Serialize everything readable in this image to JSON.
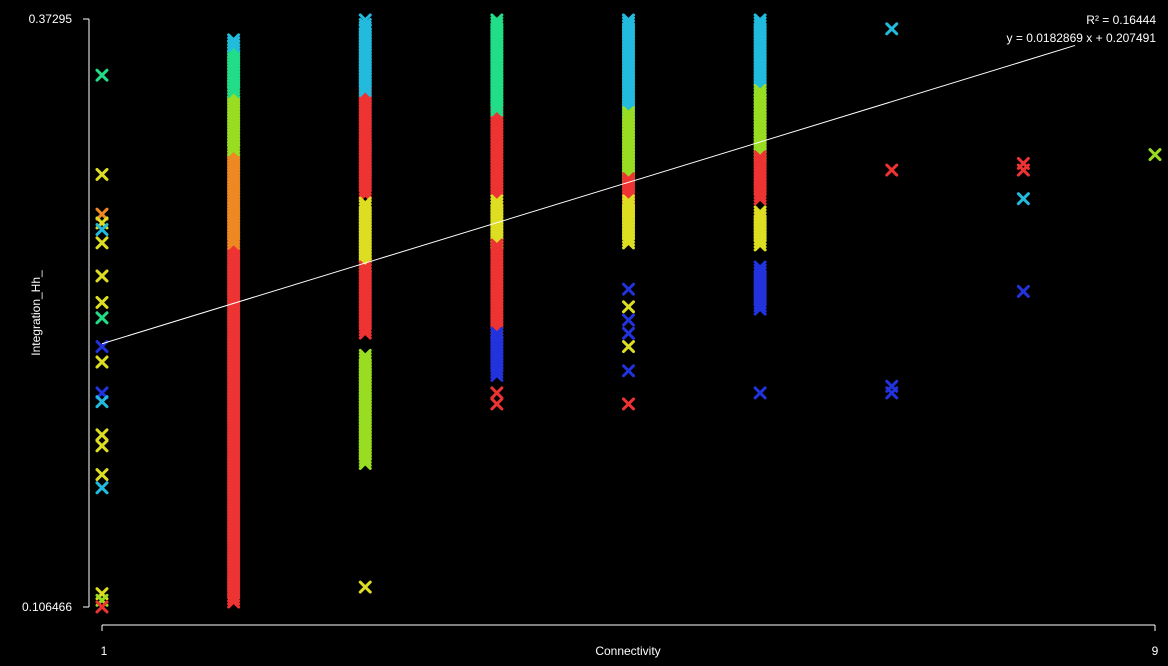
{
  "chart_data": {
    "type": "scatter",
    "xlabel": "Connectivity",
    "ylabel": "Integration_Hh_",
    "xlim": [
      1,
      9
    ],
    "ylim": [
      0.106466,
      0.37295
    ],
    "x_tick_labels": [
      "1",
      "9"
    ],
    "y_tick_labels": [
      "0.106466",
      "0.37295"
    ],
    "marker": "x",
    "background": "#000000",
    "grid": false,
    "legend": "none",
    "color_scale": [
      "#2233dd",
      "#22bbdd",
      "#22dd88",
      "#99dd22",
      "#dddd22",
      "#ee8822",
      "#ee3333"
    ],
    "regression": {
      "r2_label": "R² = 0.16444",
      "equation_label": "y = 0.0182869 x + 0.207491",
      "slope": 0.0182869,
      "intercept": 0.207491,
      "color": "#ffffff"
    },
    "bands": [
      {
        "x": 2,
        "from": 0.1075,
        "to": 0.2705,
        "color": "#ee3333"
      },
      {
        "x": 2,
        "from": 0.2705,
        "to": 0.3135,
        "color": "#ee8822"
      },
      {
        "x": 2,
        "from": 0.3135,
        "to": 0.3395,
        "color": "#99dd22"
      },
      {
        "x": 2,
        "from": 0.3395,
        "to": 0.3605,
        "color": "#22dd88"
      },
      {
        "x": 2,
        "from": 0.3605,
        "to": 0.3635,
        "color": "#22bbdd"
      },
      {
        "x": 3,
        "from": 0.2925,
        "to": 0.3395,
        "color": "#ee3333"
      },
      {
        "x": 3,
        "from": 0.2605,
        "to": 0.2895,
        "color": "#dddd22"
      },
      {
        "x": 3,
        "from": 0.2305,
        "to": 0.2605,
        "color": "#ee3333"
      },
      {
        "x": 3,
        "from": 0.3395,
        "to": 0.3705,
        "color": "#22bbdd"
      },
      {
        "x": 3,
        "from": 0.1705,
        "to": 0.2205,
        "color": "#99dd22"
      },
      {
        "x": 4,
        "from": 0.2905,
        "to": 0.3305,
        "color": "#ee3333"
      },
      {
        "x": 4,
        "from": 0.3305,
        "to": 0.3725,
        "color": "#22dd88"
      },
      {
        "x": 4,
        "from": 0.2705,
        "to": 0.2905,
        "color": "#dddd22"
      },
      {
        "x": 4,
        "from": 0.2305,
        "to": 0.2705,
        "color": "#ee3333"
      },
      {
        "x": 4,
        "from": 0.2105,
        "to": 0.2305,
        "color": "#2233dd"
      },
      {
        "x": 5,
        "from": 0.3305,
        "to": 0.3725,
        "color": "#22bbdd"
      },
      {
        "x": 5,
        "from": 0.3005,
        "to": 0.3305,
        "color": "#99dd22"
      },
      {
        "x": 5,
        "from": 0.2805,
        "to": 0.3005,
        "color": "#ee3333"
      },
      {
        "x": 5,
        "from": 0.2705,
        "to": 0.2905,
        "color": "#dddd22"
      },
      {
        "x": 6,
        "from": 0.3405,
        "to": 0.3725,
        "color": "#22bbdd"
      },
      {
        "x": 6,
        "from": 0.3105,
        "to": 0.3405,
        "color": "#99dd22"
      },
      {
        "x": 6,
        "from": 0.2905,
        "to": 0.3105,
        "color": "#ee3333"
      },
      {
        "x": 6,
        "from": 0.2705,
        "to": 0.2855,
        "color": "#dddd22"
      },
      {
        "x": 6,
        "from": 0.2405,
        "to": 0.2605,
        "color": "#2233dd"
      }
    ],
    "points": [
      {
        "x": 1,
        "y": 0.3475,
        "color": "#22dd88"
      },
      {
        "x": 1,
        "y": 0.3025,
        "color": "#dddd22"
      },
      {
        "x": 1,
        "y": 0.2845,
        "color": "#ee8822"
      },
      {
        "x": 1,
        "y": 0.2805,
        "color": "#dddd22"
      },
      {
        "x": 1,
        "y": 0.2775,
        "color": "#22bbdd"
      },
      {
        "x": 1,
        "y": 0.2715,
        "color": "#dddd22"
      },
      {
        "x": 1,
        "y": 0.2565,
        "color": "#dddd22"
      },
      {
        "x": 1,
        "y": 0.2445,
        "color": "#dddd22"
      },
      {
        "x": 1,
        "y": 0.2375,
        "color": "#22dd88"
      },
      {
        "x": 1,
        "y": 0.2245,
        "color": "#2233dd"
      },
      {
        "x": 1,
        "y": 0.2175,
        "color": "#dddd22"
      },
      {
        "x": 1,
        "y": 0.2035,
        "color": "#2233dd"
      },
      {
        "x": 1,
        "y": 0.1995,
        "color": "#22bbdd"
      },
      {
        "x": 1,
        "y": 0.1845,
        "color": "#dddd22"
      },
      {
        "x": 1,
        "y": 0.1795,
        "color": "#dddd22"
      },
      {
        "x": 1,
        "y": 0.1665,
        "color": "#dddd22"
      },
      {
        "x": 1,
        "y": 0.1605,
        "color": "#22bbdd"
      },
      {
        "x": 1,
        "y": 0.1125,
        "color": "#dddd22"
      },
      {
        "x": 1,
        "y": 0.1095,
        "color": "#99dd22"
      },
      {
        "x": 1,
        "y": 0.1065,
        "color": "#ee3333"
      },
      {
        "x": 3,
        "y": 0.3725,
        "color": "#22bbdd"
      },
      {
        "x": 3,
        "y": 0.1155,
        "color": "#dddd22"
      },
      {
        "x": 4,
        "y": 0.2035,
        "color": "#ee3333"
      },
      {
        "x": 4,
        "y": 0.1985,
        "color": "#ee3333"
      },
      {
        "x": 5,
        "y": 0.2505,
        "color": "#2233dd"
      },
      {
        "x": 5,
        "y": 0.2425,
        "color": "#dddd22"
      },
      {
        "x": 5,
        "y": 0.2365,
        "color": "#2233dd"
      },
      {
        "x": 5,
        "y": 0.2305,
        "color": "#2233dd"
      },
      {
        "x": 5,
        "y": 0.2245,
        "color": "#dddd22"
      },
      {
        "x": 5,
        "y": 0.2135,
        "color": "#2233dd"
      },
      {
        "x": 5,
        "y": 0.1985,
        "color": "#ee3333"
      },
      {
        "x": 6,
        "y": 0.2035,
        "color": "#2233dd"
      },
      {
        "x": 7,
        "y": 0.3685,
        "color": "#22bbdd"
      },
      {
        "x": 7,
        "y": 0.3045,
        "color": "#ee3333"
      },
      {
        "x": 7,
        "y": 0.2065,
        "color": "#2233dd"
      },
      {
        "x": 7,
        "y": 0.2035,
        "color": "#2233dd"
      },
      {
        "x": 8,
        "y": 0.3075,
        "color": "#ee3333"
      },
      {
        "x": 8,
        "y": 0.3045,
        "color": "#ee3333"
      },
      {
        "x": 8,
        "y": 0.2915,
        "color": "#22bbdd"
      },
      {
        "x": 8,
        "y": 0.2495,
        "color": "#2233dd"
      },
      {
        "x": 9,
        "y": 0.3115,
        "color": "#99dd22"
      }
    ]
  }
}
